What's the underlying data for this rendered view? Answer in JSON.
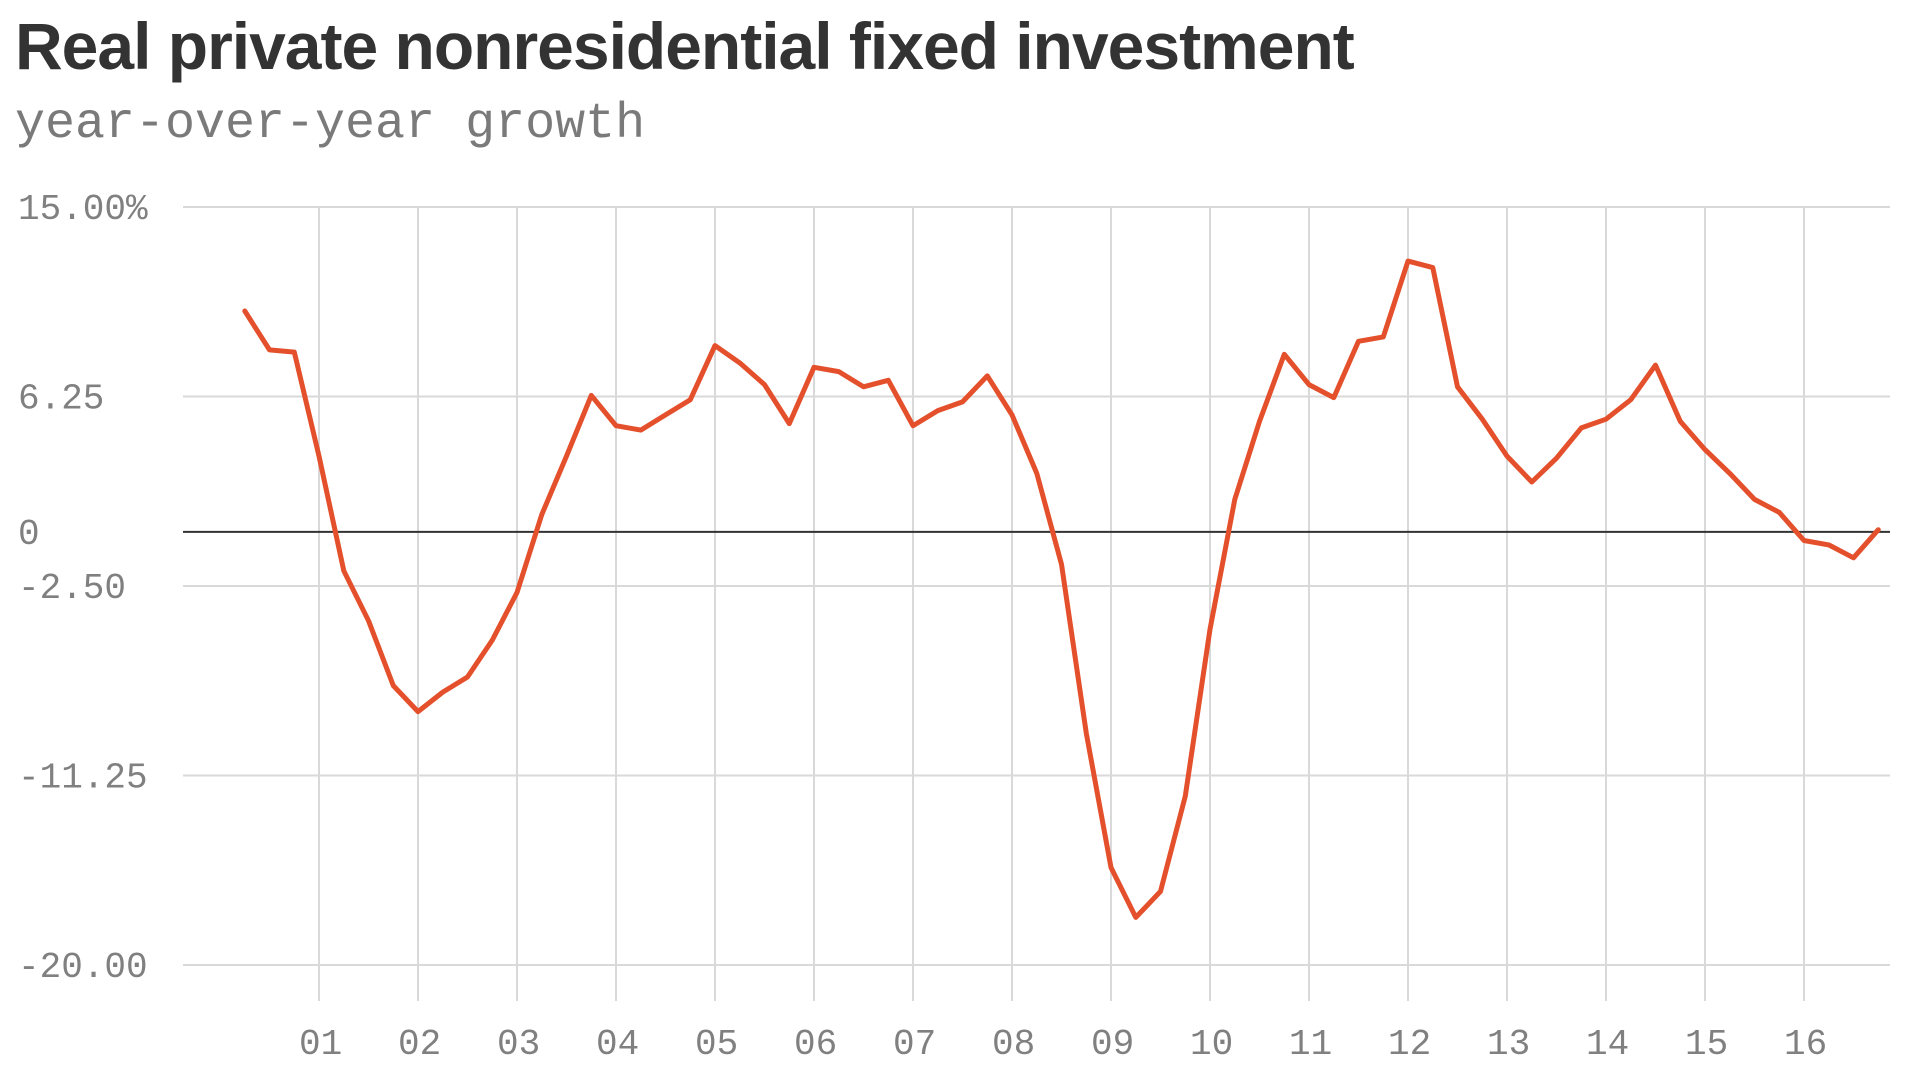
{
  "chart_data": {
    "type": "line",
    "title": "Real private nonresidential fixed investment",
    "subtitle": "year-over-year growth",
    "xlabel": "",
    "ylabel": "",
    "xlim": [
      2000.25,
      2016.75
    ],
    "ylim": [
      -20,
      15
    ],
    "y_ticks": [
      {
        "value": 15,
        "label": "15.00%"
      },
      {
        "value": 6.25,
        "label": "6.25"
      },
      {
        "value": 0,
        "label": "0"
      },
      {
        "value": -2.5,
        "label": "-2.50"
      },
      {
        "value": -11.25,
        "label": "-11.25"
      },
      {
        "value": -20,
        "label": "-20.00"
      }
    ],
    "x_ticks": [
      {
        "value": 2001,
        "label": " 01"
      },
      {
        "value": 2002,
        "label": " 02"
      },
      {
        "value": 2003,
        "label": " 03"
      },
      {
        "value": 2004,
        "label": " 04"
      },
      {
        "value": 2005,
        "label": " 05"
      },
      {
        "value": 2006,
        "label": " 06"
      },
      {
        "value": 2007,
        "label": " 07"
      },
      {
        "value": 2008,
        "label": " 08"
      },
      {
        "value": 2009,
        "label": " 09"
      },
      {
        "value": 2010,
        "label": " 10"
      },
      {
        "value": 2011,
        "label": " 11"
      },
      {
        "value": 2012,
        "label": " 12"
      },
      {
        "value": 2013,
        "label": " 13"
      },
      {
        "value": 2014,
        "label": " 14"
      },
      {
        "value": 2015,
        "label": " 15"
      },
      {
        "value": 2016,
        "label": " 16"
      }
    ],
    "grid": true,
    "zero_line": true,
    "series": [
      {
        "color": "#e4502c",
        "x": [
          2000.25,
          2000.5,
          2000.75,
          2001.0,
          2001.25,
          2001.5,
          2001.75,
          2002.0,
          2002.25,
          2002.5,
          2002.75,
          2003.0,
          2003.25,
          2003.5,
          2003.75,
          2004.0,
          2004.25,
          2004.5,
          2004.75,
          2005.0,
          2005.25,
          2005.5,
          2005.75,
          2006.0,
          2006.25,
          2006.5,
          2006.75,
          2007.0,
          2007.25,
          2007.5,
          2007.75,
          2008.0,
          2008.25,
          2008.5,
          2008.75,
          2009.0,
          2009.25,
          2009.5,
          2009.75,
          2010.0,
          2010.25,
          2010.5,
          2010.75,
          2011.0,
          2011.25,
          2011.5,
          2011.75,
          2012.0,
          2012.25,
          2012.5,
          2012.75,
          2013.0,
          2013.25,
          2013.5,
          2013.75,
          2014.0,
          2014.25,
          2014.5,
          2014.75,
          2015.0,
          2015.25,
          2015.5,
          2015.75,
          2016.0,
          2016.25,
          2016.5,
          2016.75
        ],
        "y": [
          10.2,
          8.4,
          8.3,
          3.5,
          -1.8,
          -4.1,
          -7.1,
          -8.3,
          -7.4,
          -6.7,
          -5.0,
          -2.8,
          0.8,
          3.5,
          6.3,
          4.9,
          4.7,
          5.4,
          6.1,
          8.6,
          7.8,
          6.8,
          5.0,
          7.6,
          7.4,
          6.7,
          7.0,
          4.9,
          5.6,
          6.0,
          7.2,
          5.4,
          2.7,
          -1.5,
          -9.3,
          -15.5,
          -17.8,
          -16.6,
          -12.2,
          -4.5,
          1.5,
          5.1,
          8.2,
          6.8,
          6.2,
          8.8,
          9.0,
          12.5,
          12.2,
          6.7,
          5.2,
          3.5,
          2.3,
          3.4,
          4.8,
          5.2,
          6.1,
          7.7,
          5.1,
          3.8,
          2.7,
          1.5,
          0.9,
          -0.4,
          -0.6,
          -1.2,
          0.1
        ]
      }
    ]
  }
}
